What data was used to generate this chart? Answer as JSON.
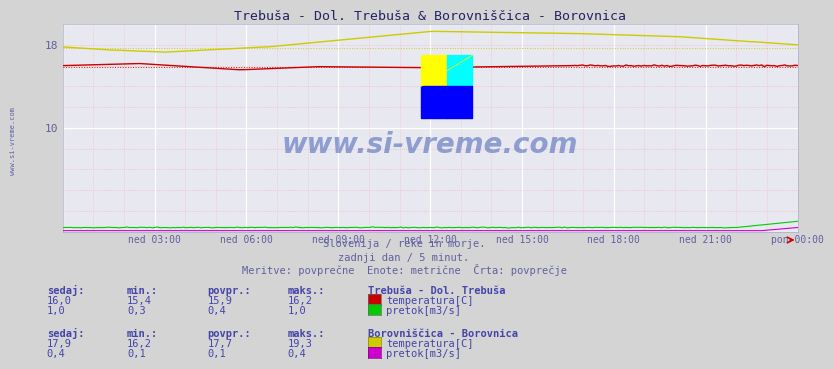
{
  "title": "Trebuša - Dol. Trebuša & Borovniščica - Borovnica",
  "bg_color": "#d4d4d4",
  "plot_bg_color": "#e8e8f0",
  "tick_label_color": "#6060a0",
  "xtick_labels": [
    "ned 03:00",
    "ned 06:00",
    "ned 09:00",
    "ned 12:00",
    "ned 15:00",
    "ned 18:00",
    "ned 21:00",
    "pon 00:00"
  ],
  "ylim": [
    0,
    20
  ],
  "n_points": 288,
  "subtitle1": "Slovenija / reke in morje.",
  "subtitle2": "zadnji dan / 5 minut.",
  "subtitle3": "Meritve: povprečne  Enote: metrične  Črta: povprečje",
  "line_trebusa_temp_color": "#cc0000",
  "line_trebusa_flow_color": "#00cc00",
  "line_borovnica_temp_color": "#cccc00",
  "line_borovnica_flow_color": "#cc00cc",
  "watermark": "www.si-vreme.com",
  "legend_station1": "Trebuša - Dol. Trebuša",
  "legend_station2": "Borovniščica - Borovnica",
  "legend_temp": "temperatura[C]",
  "legend_flow": "pretok[m3/s]",
  "trebusa_temp_sedaj": "16,0",
  "trebusa_temp_min": "15,4",
  "trebusa_temp_povpr": "15,9",
  "trebusa_temp_maks": "16,2",
  "trebusa_flow_sedaj": "1,0",
  "trebusa_flow_min": "0,3",
  "trebusa_flow_povpr": "0,4",
  "trebusa_flow_maks": "1,0",
  "borovnica_temp_sedaj": "17,9",
  "borovnica_temp_min": "16,2",
  "borovnica_temp_povpr": "17,7",
  "borovnica_temp_maks": "19,3",
  "borovnica_flow_sedaj": "0,4",
  "borovnica_flow_min": "0,1",
  "borovnica_flow_povpr": "0,1",
  "borovnica_flow_maks": "0,4",
  "label_color": "#4444aa",
  "value_color": "#4444aa"
}
